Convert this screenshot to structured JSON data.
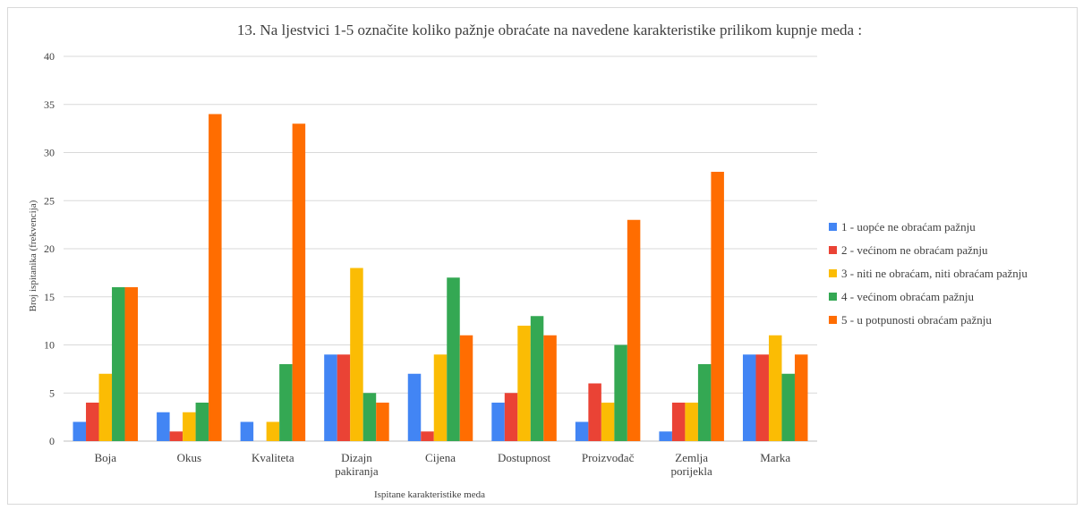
{
  "chart_data": {
    "type": "bar",
    "title": "13. Na ljestvici  1-5  označite koliko  pažnje obraćate na navedene karakteristike  prilikom  kupnje meda :",
    "xlabel": "Ispitane karakteristike meda",
    "ylabel": "Broj ispitanika (frekvencija)",
    "ylim": [
      0,
      40
    ],
    "yticks": [
      0,
      5,
      10,
      15,
      20,
      25,
      30,
      35,
      40
    ],
    "grid": true,
    "legend_position": "right",
    "categories": [
      [
        "Boja"
      ],
      [
        "Okus"
      ],
      [
        "Kvaliteta"
      ],
      [
        "Dizajn",
        "pakiranja"
      ],
      [
        "Cijena"
      ],
      [
        "Dostupnost"
      ],
      [
        "Proizvođač"
      ],
      [
        "Zemlja",
        "porijekla"
      ],
      [
        "Marka"
      ]
    ],
    "series": [
      {
        "name": "1 - uopće ne obraćam pažnju",
        "color": "#4285f4",
        "values": [
          2,
          3,
          2,
          9,
          7,
          4,
          2,
          1,
          9
        ]
      },
      {
        "name": "2 - većinom ne obraćam pažnju",
        "color": "#ea4335",
        "values": [
          4,
          1,
          0,
          9,
          1,
          5,
          6,
          4,
          9
        ]
      },
      {
        "name": "3 - niti ne obraćam, niti obraćam pažnju",
        "color": "#fbbc04",
        "values": [
          7,
          3,
          2,
          18,
          9,
          12,
          4,
          4,
          11
        ]
      },
      {
        "name": "4 - većinom obraćam pažnju",
        "color": "#34a853",
        "values": [
          16,
          4,
          8,
          5,
          17,
          13,
          10,
          8,
          7
        ]
      },
      {
        "name": "5 - u potpunosti obraćam pažnju",
        "color": "#ff6d01",
        "values": [
          16,
          34,
          33,
          4,
          11,
          11,
          23,
          28,
          9
        ]
      }
    ]
  }
}
